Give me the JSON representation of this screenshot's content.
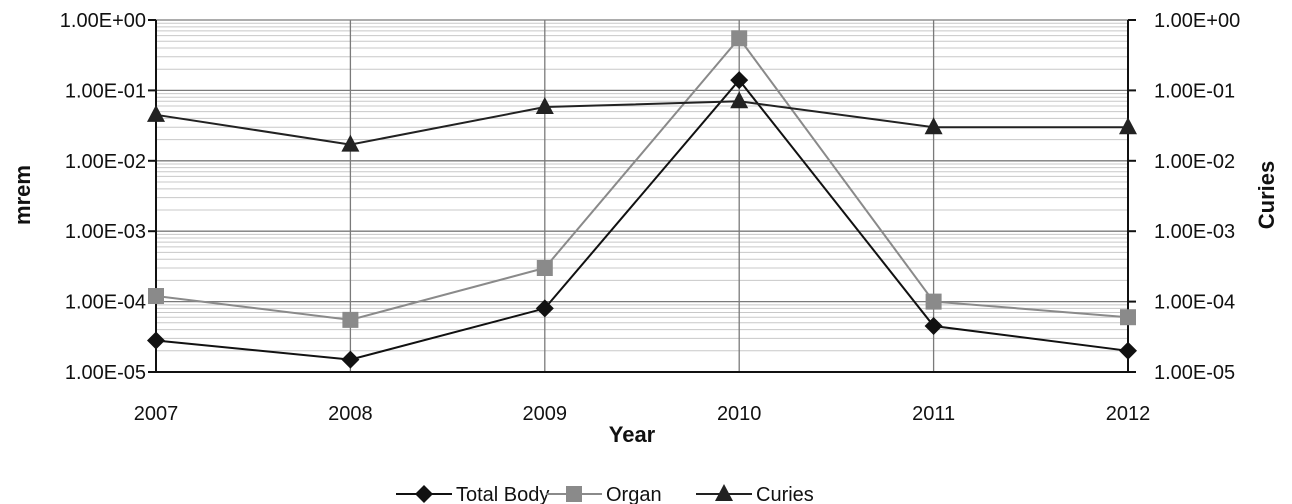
{
  "chart_data": {
    "type": "line",
    "title": "",
    "xlabel": "Year",
    "ylabel": "mrem",
    "y2label": "Curies",
    "y_scale": "log",
    "ylim": [
      1e-05,
      1
    ],
    "y2lim": [
      1e-05,
      1
    ],
    "y_tick_labels": [
      "1.00E+00",
      "1.00E-01",
      "1.00E-02",
      "1.00E-03",
      "1.00E-04",
      "1.00E-05"
    ],
    "y2_tick_labels": [
      "1.00E+00",
      "1.00E-01",
      "1.00E-02",
      "1.00E-03",
      "1.00E-04",
      "1.00E-05"
    ],
    "categories": [
      "2007",
      "2008",
      "2009",
      "2010",
      "2011",
      "2012"
    ],
    "grid": true,
    "legend_position": "bottom",
    "series": [
      {
        "name": "Total Body",
        "axis": "left",
        "marker": "diamond",
        "color": "#111111",
        "values": [
          2.8e-05,
          1.5e-05,
          8e-05,
          0.14,
          4.5e-05,
          2e-05
        ]
      },
      {
        "name": "Organ",
        "axis": "left",
        "marker": "square",
        "color": "#8a8a8a",
        "values": [
          0.00012,
          5.5e-05,
          0.0003,
          0.55,
          0.0001,
          6e-05
        ]
      },
      {
        "name": "Curies",
        "axis": "right",
        "marker": "triangle",
        "color": "#222222",
        "values": [
          0.045,
          0.017,
          0.058,
          0.07,
          0.03,
          0.03
        ]
      }
    ]
  }
}
